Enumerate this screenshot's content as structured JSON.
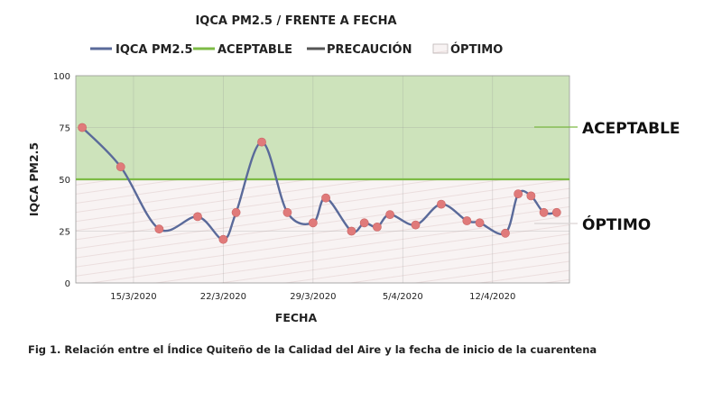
{
  "chart_data": {
    "type": "line",
    "title": "IQCA PM2.5 / FRENTE A FECHA",
    "xlabel": "FECHA",
    "ylabel": "IQCA PM2.5",
    "ylim": [
      0,
      100
    ],
    "yticks": [
      "0",
      "25",
      "50",
      "75",
      "100"
    ],
    "xticks": [
      {
        "label": "15/3/2020",
        "x": "2020-03-15"
      },
      {
        "label": "22/3/2020",
        "x": "2020-03-22"
      },
      {
        "label": "29/3/2020",
        "x": "2020-03-29"
      },
      {
        "label": "5/4/2020",
        "x": "2020-04-05"
      },
      {
        "label": "12/4/2020",
        "x": "2020-04-12"
      }
    ],
    "grid": true,
    "legend_position": "top",
    "legend": [
      {
        "label": "IQCA PM2.5",
        "color": "#5a6a9a",
        "kind": "line"
      },
      {
        "label": "ACEPTABLE",
        "color": "#7dbb45",
        "kind": "line"
      },
      {
        "label": "PRECAUCIÓN",
        "color": "#555555",
        "kind": "line"
      },
      {
        "label": "ÓPTIMO",
        "color": "#f4eeee",
        "kind": "box"
      }
    ],
    "series": [
      {
        "name": "IQCA PM2.5",
        "color": "#5a6a9a",
        "marker_color": "#e07a7a",
        "x": [
          "2020-03-11",
          "2020-03-14",
          "2020-03-17",
          "2020-03-20",
          "2020-03-22",
          "2020-03-23",
          "2020-03-25",
          "2020-03-27",
          "2020-03-29",
          "2020-03-30",
          "2020-04-01",
          "2020-04-02",
          "2020-04-03",
          "2020-04-04",
          "2020-04-06",
          "2020-04-08",
          "2020-04-10",
          "2020-04-11",
          "2020-04-13",
          "2020-04-14",
          "2020-04-15",
          "2020-04-16",
          "2020-04-17"
        ],
        "values": [
          75,
          56,
          26,
          32,
          21,
          34,
          68,
          34,
          29,
          41,
          25,
          29,
          27,
          33,
          28,
          38,
          30,
          29,
          24,
          43,
          42,
          34,
          34
        ]
      }
    ],
    "thresholds": [
      {
        "name": "ACEPTABLE",
        "y": 50,
        "color": "#7dbb45"
      }
    ],
    "zones": [
      {
        "label": "ACEPTABLE",
        "from": 50,
        "to": 100,
        "color": "#cde3bb"
      },
      {
        "label": "ÓPTIMO",
        "from": 0,
        "to": 50,
        "color": "#f7f2f2"
      }
    ]
  },
  "caption": "Fig 1. Relación entre el Índice Quiteño de la Calidad del Aire y la fecha de inicio de la cuarentena"
}
